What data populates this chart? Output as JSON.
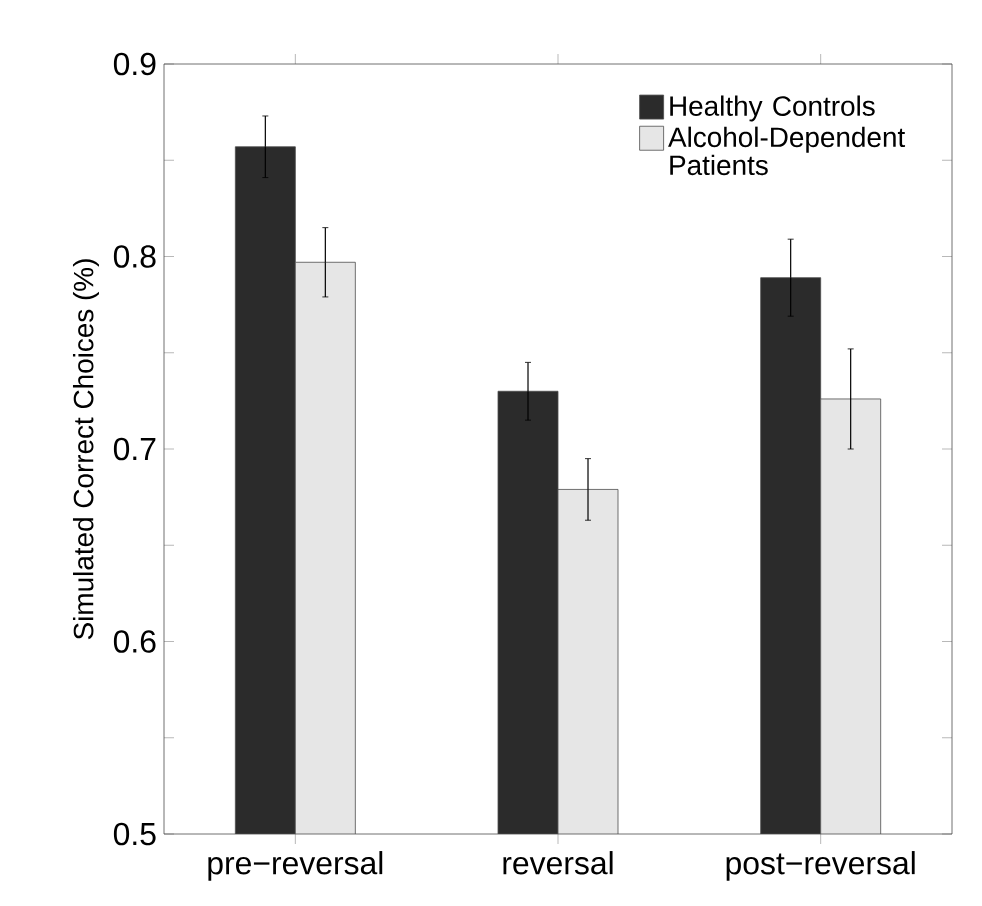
{
  "chart_data": {
    "type": "bar",
    "ylabel": "Simulated Correct Choices (%)",
    "categories": [
      "pre−reversal",
      "reversal",
      "post−reversal"
    ],
    "series": [
      {
        "name": "Healthy Controls",
        "color": "#2b2b2b",
        "values": [
          0.857,
          0.73,
          0.789
        ],
        "errors": [
          0.016,
          0.015,
          0.02
        ]
      },
      {
        "name": "Alcohol-Dependent Patients",
        "color": "#e6e6e6",
        "values": [
          0.797,
          0.679,
          0.726
        ],
        "errors": [
          0.018,
          0.016,
          0.026
        ]
      }
    ],
    "ylim": [
      0.5,
      0.9
    ],
    "yticks": [
      0.5,
      {
        "value": 0.55,
        "label": null
      },
      0.6,
      {
        "value": 0.65,
        "label": null
      },
      0.7,
      {
        "value": 0.75,
        "label": null
      },
      0.8,
      {
        "value": 0.85,
        "label": null
      },
      0.9
    ],
    "grid": false,
    "legend": "top right"
  }
}
